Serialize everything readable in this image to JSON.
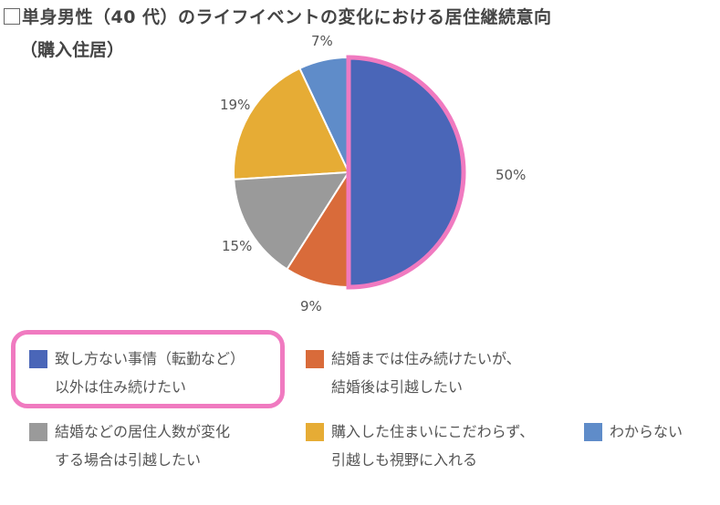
{
  "title": "単身男性（40 代）のライフイベントの変化における居住継続意向",
  "subtitle": "（購入住居）",
  "chart_data": {
    "type": "pie",
    "title": "単身男性（40 代）のライフイベントの変化における居住継続意向（購入住居）",
    "start": "top, clockwise",
    "highlighted": "致し方ない事情（転勤など）以外は住み続けたい",
    "slices": [
      {
        "label": "致し方ない事情（転勤など）以外は住み続けたい",
        "line1": "致し方ない事情（転勤など）",
        "line2": "以外は住み続けたい",
        "value": 50,
        "text": "50%",
        "color": "#4a66b8"
      },
      {
        "label": "結婚までは住み続けたいが、結婚後は引越したい",
        "line1": "結婚までは住み続けたいが、",
        "line2": "結婚後は引越したい",
        "value": 9,
        "text": "9%",
        "color": "#d96b3a"
      },
      {
        "label": "結婚などの居住人数が変化する場合は引越したい",
        "line1": "結婚などの居住人数が変化",
        "line2": "する場合は引越したい",
        "value": 15,
        "text": "15%",
        "color": "#9a9a9a"
      },
      {
        "label": "購入した住まいにこだわらず、引越しも視野に入れる",
        "line1": "購入した住まいにこだわらず、",
        "line2": "引越しも視野に入れる",
        "value": 19,
        "text": "19%",
        "color": "#e6ac35"
      },
      {
        "label": "わからない",
        "line1": "わからない",
        "line2": "",
        "value": 7,
        "text": "7%",
        "color": "#5f8cc9"
      }
    ],
    "highlight_color": "#f07ac0"
  }
}
